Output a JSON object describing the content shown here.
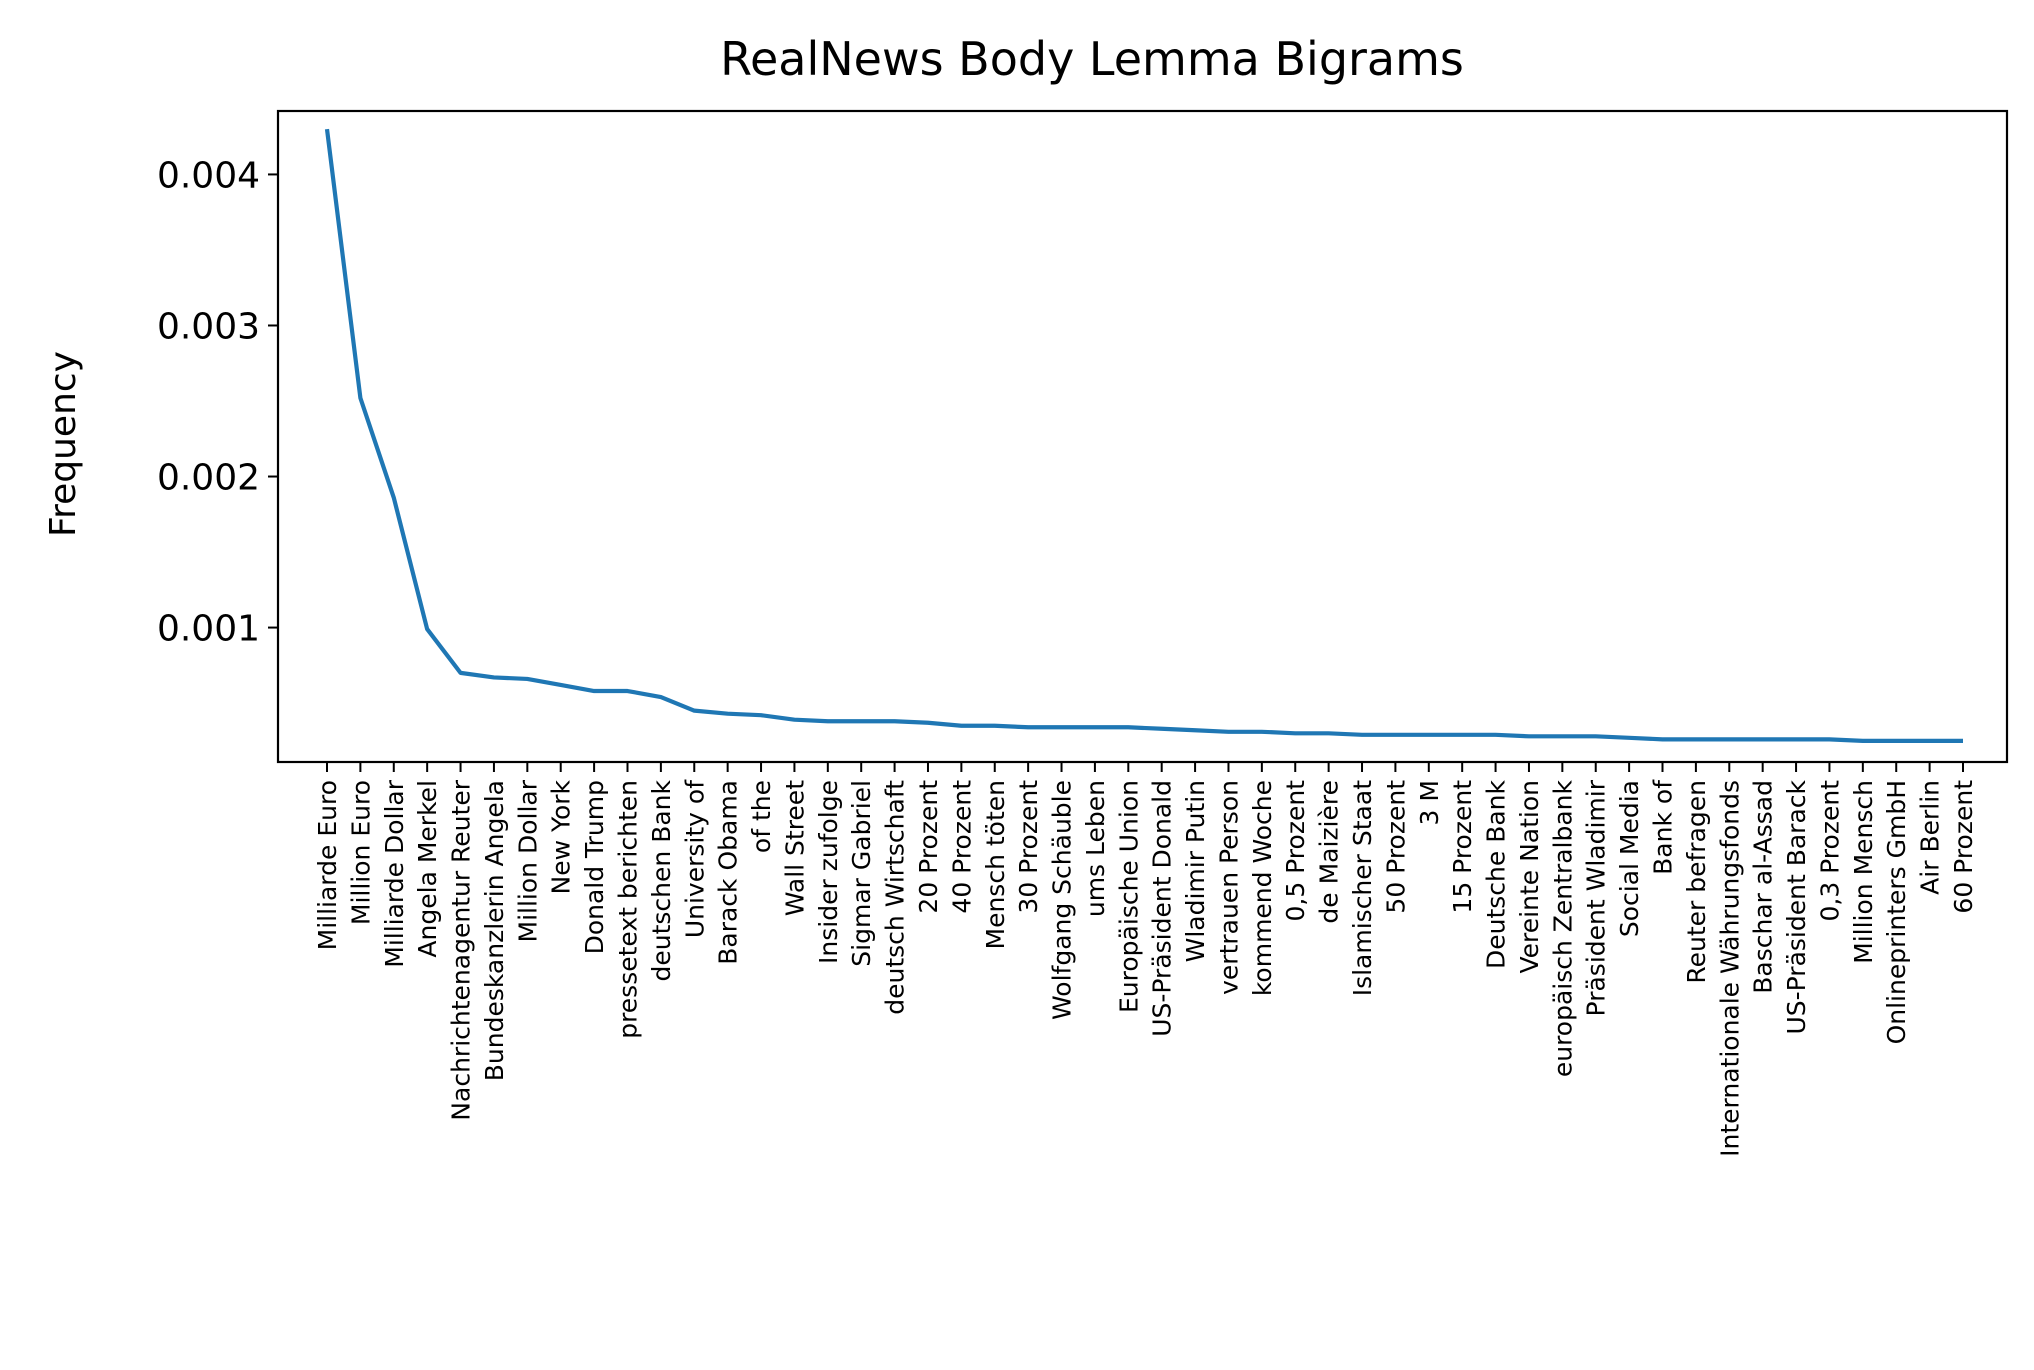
{
  "chart_data": {
    "type": "line",
    "title": "RealNews Body Lemma Bigrams",
    "xlabel": "",
    "ylabel": "Frequency",
    "grid": false,
    "legend": "none",
    "line_color": "#1f77b4",
    "ylim": [
      0.00011,
      0.00442
    ],
    "yticks": [
      0.001,
      0.002,
      0.003,
      0.004
    ],
    "ytick_labels": [
      "0.001",
      "0.002",
      "0.003",
      "0.004"
    ],
    "categories": [
      "Milliarde Euro",
      "Million Euro",
      "Milliarde Dollar",
      "Angela Merkel",
      "Nachrichtenagentur Reuter",
      "Bundeskanzlerin Angela",
      "Million Dollar",
      "New York",
      "Donald Trump",
      "pressetext berichten",
      "deutschen Bank",
      "University of",
      "Barack Obama",
      "of the",
      "Wall Street",
      "Insider zufolge",
      "Sigmar Gabriel",
      "deutsch Wirtschaft",
      "20 Prozent",
      "40 Prozent",
      "Mensch töten",
      "30 Prozent",
      "Wolfgang Schäuble",
      "ums Leben",
      "Europäische Union",
      "US-Präsident Donald",
      "Wladimir Putin",
      "vertrauen Person",
      "kommend Woche",
      "0,5 Prozent",
      "de Maizière",
      "Islamischer Staat",
      "50 Prozent",
      "3 M",
      "15 Prozent",
      "Deutsche Bank",
      "Vereinte Nation",
      "europäisch Zentralbank",
      "Präsident Wladimir",
      "Social Media",
      "Bank of",
      "Reuter befragen",
      "Internationale Währungsfonds",
      "Baschar al-Assad",
      "US-Präsident Barack",
      "0,3 Prozent",
      "Million Mensch",
      "Onlineprinters GmbH",
      "Air Berlin",
      "60 Prozent"
    ],
    "values": [
      0.0043,
      0.00252,
      0.00186,
      0.00099,
      0.0007,
      0.00067,
      0.00066,
      0.00062,
      0.00058,
      0.00058,
      0.00054,
      0.00045,
      0.00043,
      0.00042,
      0.00039,
      0.00038,
      0.00038,
      0.00038,
      0.00037,
      0.00035,
      0.00035,
      0.00034,
      0.00034,
      0.00034,
      0.00034,
      0.00033,
      0.00032,
      0.00031,
      0.00031,
      0.0003,
      0.0003,
      0.00029,
      0.00029,
      0.00029,
      0.00029,
      0.00029,
      0.00028,
      0.00028,
      0.00028,
      0.00027,
      0.00026,
      0.00026,
      0.00026,
      0.00026,
      0.00026,
      0.00026,
      0.00025,
      0.00025,
      0.00025,
      0.00025
    ]
  }
}
